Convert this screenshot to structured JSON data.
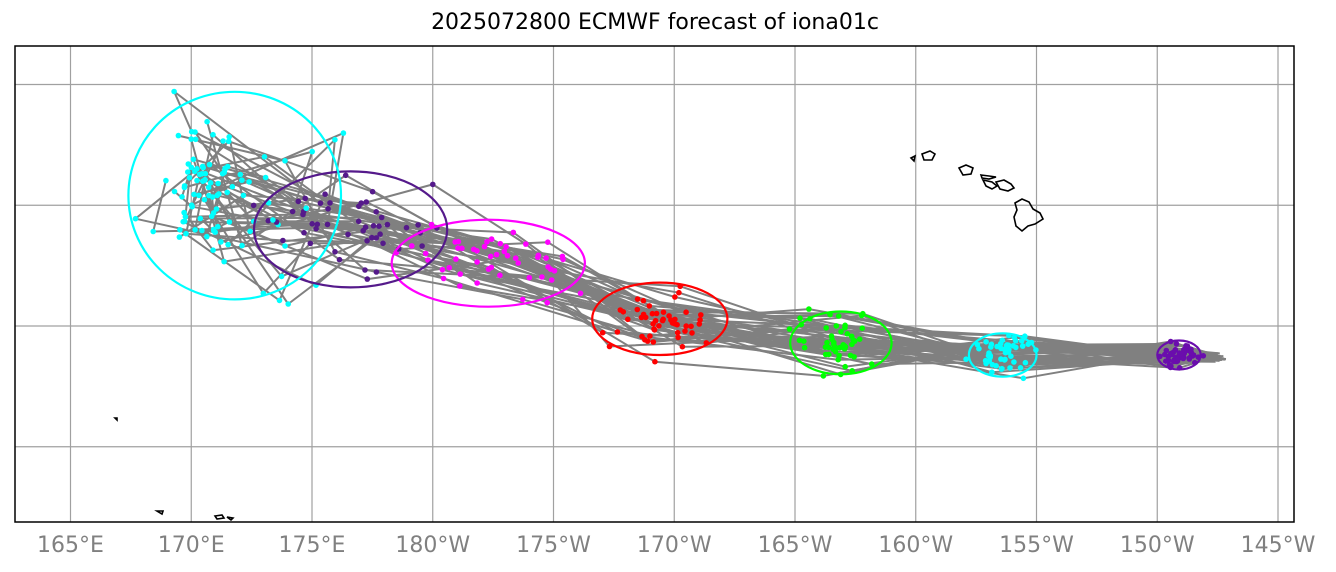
{
  "title": "2025072800 ECMWF forecast of iona01c",
  "x_tick_labels": [
    "165°E",
    "170°E",
    "175°E",
    "180°W",
    "175°W",
    "170°W",
    "165°W",
    "160°W",
    "155°W",
    "150°W",
    "145°W"
  ],
  "colors": {
    "track": "#808080",
    "grid": "#a0a0a0",
    "tick_label": "#808080",
    "coast": "#000000",
    "clusters": [
      "#6a0dad",
      "#00ffff",
      "#00ff00",
      "#ff0000",
      "#ff00ff",
      "#551a8b",
      "#00ffff"
    ]
  },
  "chart_data": {
    "type": "map",
    "projection": "plate carree",
    "grid": true,
    "x_ticks_deg_east": [
      165,
      170,
      175,
      180,
      185,
      190,
      195,
      200,
      205,
      210,
      215
    ],
    "lat_range": [
      10,
      30
    ],
    "origin": {
      "lon": 212.5,
      "lat": 18.7
    },
    "members": 50,
    "clusters": [
      {
        "center": {
          "lon": 210.9,
          "lat": 18.8
        },
        "half_width_deg": 0.9,
        "half_height_deg": 0.6,
        "color": "#6a0dad"
      },
      {
        "center": {
          "lon": 203.6,
          "lat": 18.8
        },
        "half_width_deg": 1.4,
        "half_height_deg": 0.9,
        "color": "#00ffff"
      },
      {
        "center": {
          "lon": 196.9,
          "lat": 19.3
        },
        "half_width_deg": 2.1,
        "half_height_deg": 1.3,
        "color": "#00ff00"
      },
      {
        "center": {
          "lon": 189.4,
          "lat": 20.3
        },
        "half_width_deg": 2.8,
        "half_height_deg": 1.5,
        "color": "#ff0000"
      },
      {
        "center": {
          "lon": 182.3,
          "lat": 22.6
        },
        "half_width_deg": 4.0,
        "half_height_deg": 1.8,
        "color": "#ff00ff"
      },
      {
        "center": {
          "lon": 176.6,
          "lat": 24.0
        },
        "half_width_deg": 4.0,
        "half_height_deg": 2.4,
        "color": "#551a8b"
      },
      {
        "center": {
          "lon": 171.8,
          "lat": 25.4
        },
        "half_width_deg": 4.4,
        "half_height_deg": 4.3,
        "color": "#00ffff"
      }
    ]
  }
}
